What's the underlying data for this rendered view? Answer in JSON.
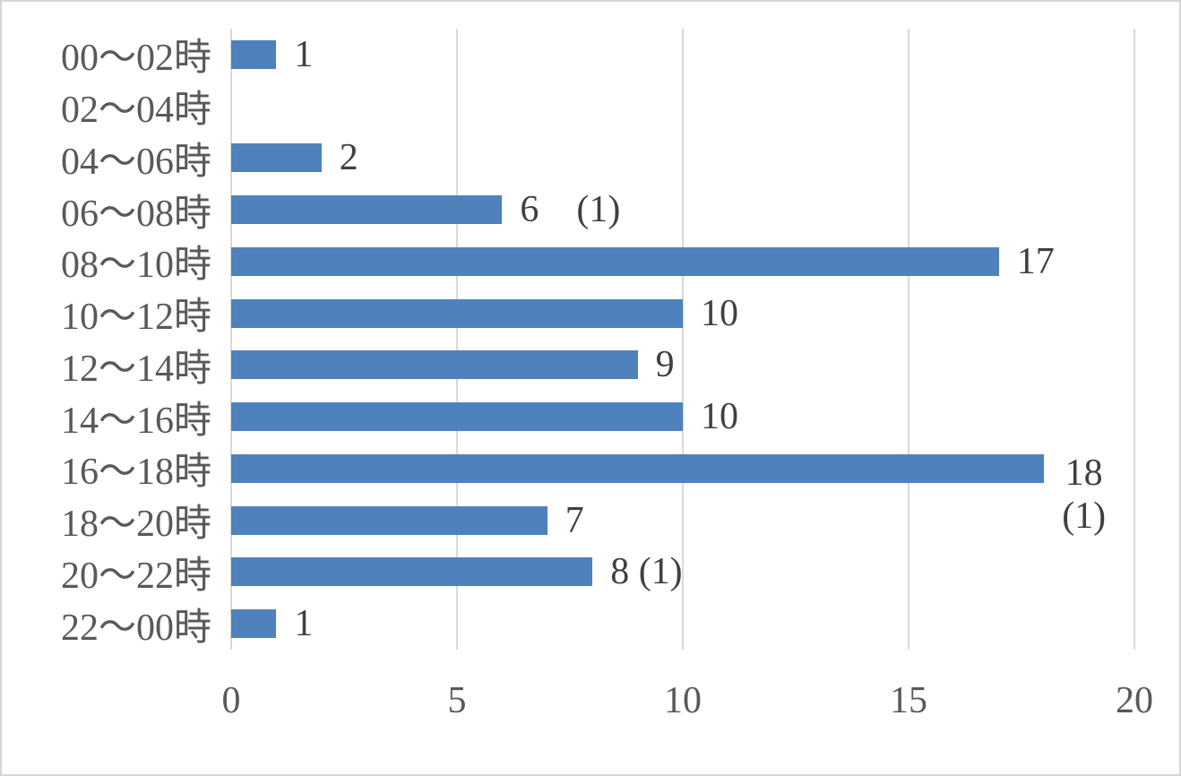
{
  "chart_data": {
    "type": "bar",
    "orientation": "horizontal",
    "title": "",
    "categories": [
      "00～02時",
      "02～04時",
      "04～06時",
      "06～08時",
      "08～10時",
      "10～12時",
      "12～14時",
      "14～16時",
      "16～18時",
      "18～20時",
      "20～22時",
      "22～00時"
    ],
    "values": [
      1,
      0,
      2,
      6,
      17,
      10,
      9,
      10,
      18,
      7,
      8,
      1
    ],
    "data_labels": [
      "1",
      "",
      "2",
      "6　(1)",
      "17",
      "10",
      "9",
      "10",
      "18\n(1)",
      "7",
      "8 (1)",
      "1"
    ],
    "parenthetical_note_rows": [
      "06～08時",
      "16～18時",
      "20～22時"
    ],
    "x_axis": {
      "ticks": [
        "0",
        "5",
        "10",
        "15",
        "20"
      ],
      "tick_values": [
        0,
        5,
        10,
        15,
        20
      ],
      "min": 0,
      "max": 20
    },
    "grid": true,
    "legend": false,
    "colors": {
      "bar": "#4F81BD",
      "gridline": "#D9D9D9",
      "category_text": "#595959",
      "tick_text": "#595959",
      "value_text": "#404040",
      "frame_border": "#D5D5D5",
      "background": "#FFFFFF"
    }
  }
}
